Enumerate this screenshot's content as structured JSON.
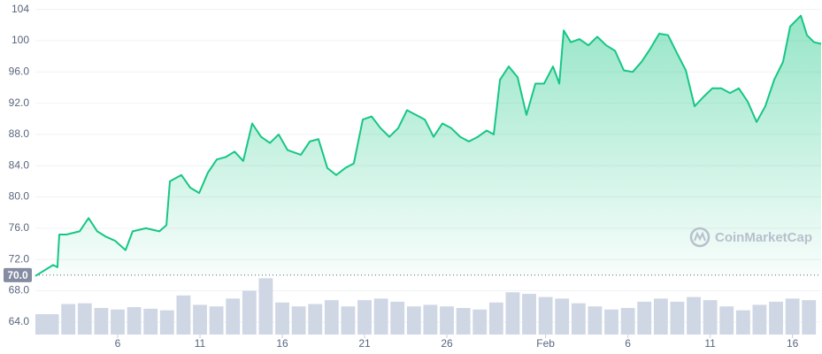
{
  "chart_data": {
    "type": "line",
    "watermark": "CoinMarketCap",
    "reference": {
      "value": 70,
      "label": "70.0"
    },
    "xlim": [
      0,
      47.74
    ],
    "xticks": [
      {
        "value": 5,
        "label": "6"
      },
      {
        "value": 10,
        "label": "11"
      },
      {
        "value": 15,
        "label": "16"
      },
      {
        "value": 20,
        "label": "21"
      },
      {
        "value": 25,
        "label": "26"
      },
      {
        "value": 31,
        "label": "Feb"
      },
      {
        "value": 36,
        "label": "6"
      },
      {
        "value": 41,
        "label": "11"
      },
      {
        "value": 46,
        "label": "16"
      }
    ],
    "ylim": [
      62.4,
      105.2
    ],
    "yticks": [
      {
        "value": 64,
        "label": "64.0"
      },
      {
        "value": 68,
        "label": "68.0"
      },
      {
        "value": 72,
        "label": "72.0"
      },
      {
        "value": 76,
        "label": "76.0"
      },
      {
        "value": 80,
        "label": "80.0"
      },
      {
        "value": 84,
        "label": "84.0"
      },
      {
        "value": 88,
        "label": "88.0"
      },
      {
        "value": 92,
        "label": "92.0"
      },
      {
        "value": 96,
        "label": "96.0"
      },
      100,
      104
    ],
    "grid": true,
    "x": [
      0,
      0.54,
      1.08,
      1.34,
      1.45,
      1.88,
      2.69,
      3.23,
      3.76,
      4.3,
      4.84,
      5.48,
      5.91,
      6.72,
      7.53,
      7.96,
      8.17,
      8.87,
      9.41,
      9.95,
      10.48,
      11.02,
      11.56,
      12.1,
      12.63,
      13.17,
      13.71,
      14.25,
      14.78,
      15.32,
      16.13,
      16.67,
      17.2,
      17.74,
      18.28,
      18.82,
      19.35,
      19.89,
      20.43,
      20.97,
      21.51,
      22.04,
      22.58,
      23.12,
      23.66,
      24.19,
      24.73,
      25.27,
      25.81,
      26.34,
      26.88,
      27.42,
      27.85,
      28.23,
      28.76,
      29.3,
      29.84,
      30.38,
      30.91,
      31.45,
      31.83,
      32.1,
      32.53,
      33.06,
      33.6,
      34.14,
      34.68,
      35.22,
      35.75,
      36.29,
      36.83,
      37.37,
      37.9,
      38.44,
      38.98,
      39.52,
      40.05,
      40.59,
      41.13,
      41.67,
      42.2,
      42.74,
      43.28,
      43.82,
      44.35,
      44.89,
      45.43,
      45.86,
      46.51,
      46.88,
      47.31,
      47.74
    ],
    "series": [
      {
        "color": "#16c784",
        "values": [
          69.9,
          70.6,
          71.3,
          71.0,
          75.2,
          75.2,
          75.6,
          77.3,
          75.6,
          74.9,
          74.4,
          73.2,
          75.6,
          76.0,
          75.6,
          76.4,
          82.0,
          82.8,
          81.2,
          80.5,
          83.1,
          84.8,
          85.1,
          85.8,
          84.6,
          89.4,
          87.7,
          86.9,
          88.0,
          86.0,
          85.4,
          87.1,
          87.4,
          83.7,
          82.8,
          83.7,
          84.3,
          89.9,
          90.3,
          88.8,
          87.7,
          88.8,
          91.1,
          90.5,
          89.9,
          87.7,
          89.4,
          88.8,
          87.7,
          87.1,
          87.7,
          88.5,
          88.0,
          95.0,
          96.7,
          95.3,
          90.5,
          94.5,
          94.5,
          96.7,
          94.5,
          101.3,
          99.8,
          100.2,
          99.4,
          100.5,
          99.4,
          98.7,
          96.2,
          96.0,
          97.3,
          99.0,
          100.9,
          100.7,
          98.4,
          96.2,
          91.6,
          92.8,
          93.9,
          93.9,
          93.3,
          93.9,
          92.2,
          89.6,
          91.6,
          95.0,
          97.3,
          101.8,
          103.2,
          100.7,
          99.8,
          99.6
        ]
      }
    ],
    "volume": {
      "color": "#cfd6e4",
      "x": [
        0,
        1,
        2,
        3,
        4,
        5,
        6,
        7,
        8,
        9,
        10,
        11,
        12,
        13,
        14,
        15,
        16,
        17,
        18,
        19,
        20,
        21,
        22,
        23,
        24,
        25,
        26,
        27,
        28,
        29,
        30,
        31,
        32,
        33,
        34,
        35,
        36,
        37,
        38,
        39,
        40,
        41,
        42,
        43,
        44,
        45,
        46,
        47
      ],
      "values": [
        65.0,
        65.0,
        66.3,
        66.4,
        65.8,
        65.6,
        65.9,
        65.7,
        65.5,
        67.4,
        66.2,
        66.0,
        67.0,
        68.0,
        69.6,
        66.5,
        66.0,
        66.3,
        66.8,
        66.0,
        66.8,
        67.0,
        66.6,
        66.0,
        66.2,
        66.0,
        65.8,
        65.6,
        66.5,
        67.8,
        67.6,
        67.2,
        67.0,
        66.4,
        66.0,
        65.6,
        65.8,
        66.6,
        67.0,
        66.6,
        67.2,
        66.8,
        66.0,
        65.5,
        66.2,
        66.6,
        67.0,
        66.8
      ]
    }
  }
}
